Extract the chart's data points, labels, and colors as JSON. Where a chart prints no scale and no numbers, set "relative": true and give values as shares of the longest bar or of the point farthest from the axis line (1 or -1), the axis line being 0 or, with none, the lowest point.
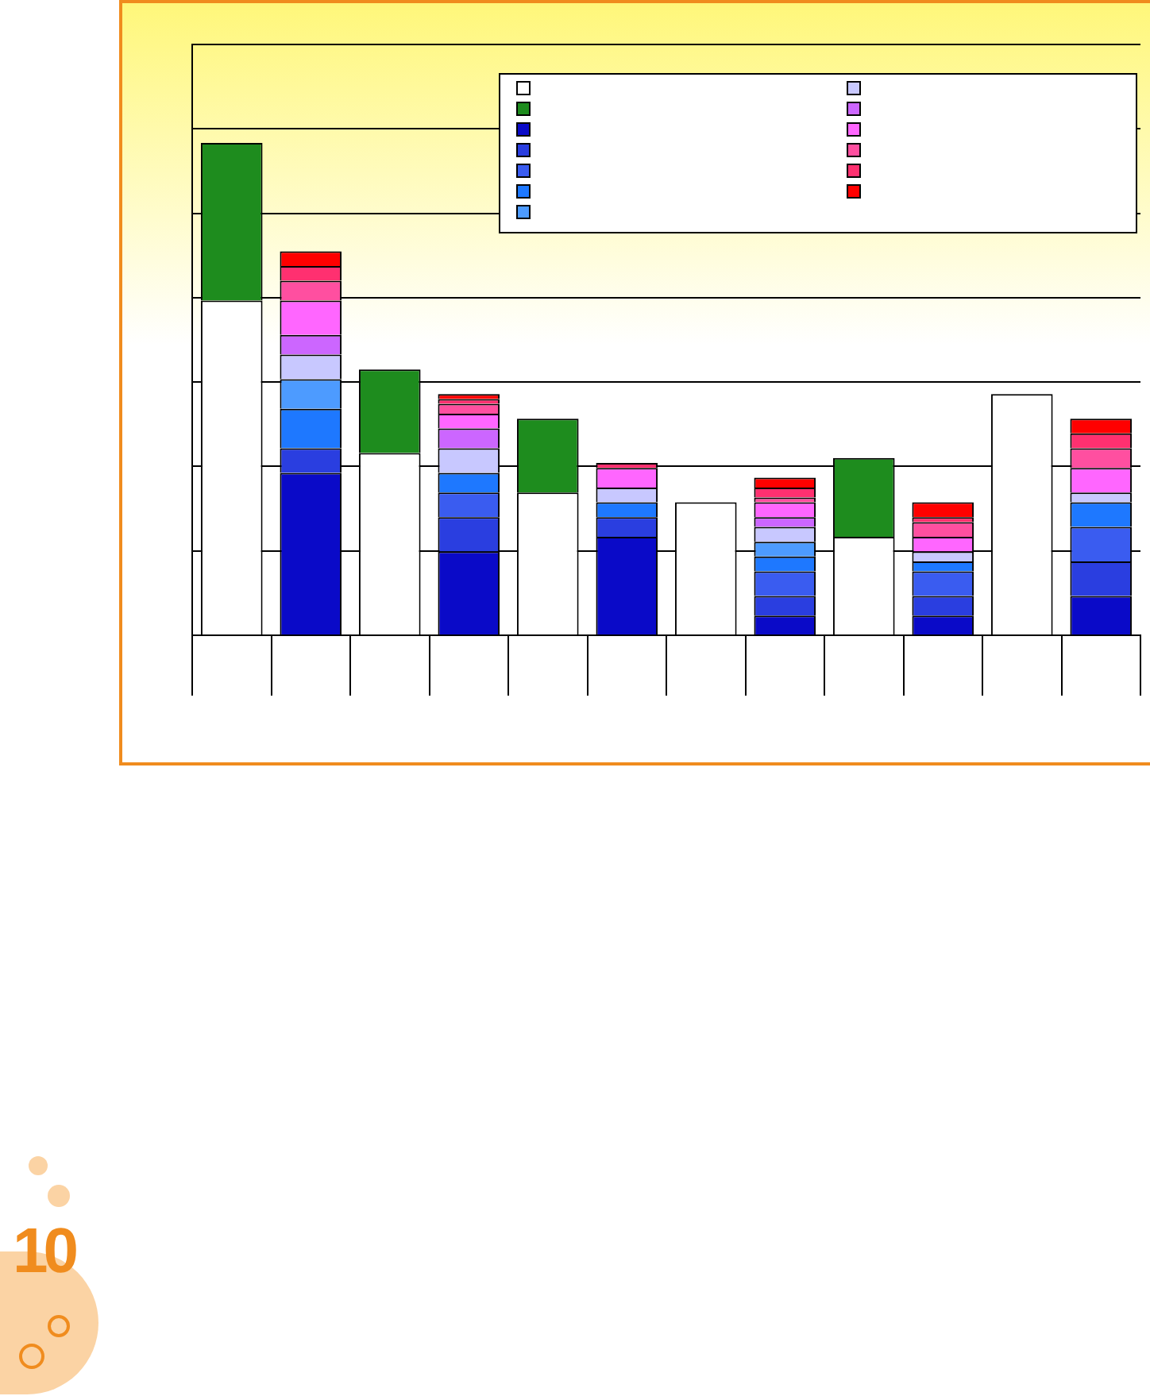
{
  "chart_data": {
    "type": "bar",
    "relative": true,
    "stacked": true,
    "grid": "y",
    "categories": [
      null,
      null,
      null,
      null,
      null,
      null,
      null,
      null,
      null,
      null,
      null,
      null
    ],
    "annotations": [
      "10"
    ],
    "series": [
      {
        "color": "#ffffff",
        "values": [
          0.68,
          null,
          0.37,
          null,
          0.29,
          null,
          0.27,
          null,
          0.2,
          null,
          0.49,
          null
        ]
      },
      {
        "color": "#1e8c1e",
        "values": [
          0.32,
          null,
          0.17,
          null,
          0.15,
          null,
          null,
          null,
          0.16,
          null,
          null,
          null
        ]
      },
      {
        "color": "#0a0ac8",
        "values": [
          null,
          0.33,
          null,
          0.17,
          null,
          0.2,
          null,
          0.04,
          null,
          0.04,
          null,
          0.08
        ]
      },
      {
        "color": "#2a3ee0",
        "values": [
          null,
          0.05,
          null,
          0.07,
          null,
          0.04,
          null,
          0.04,
          null,
          0.04,
          null,
          0.07
        ]
      },
      {
        "color": "#3a5cf0",
        "values": [
          null,
          null,
          null,
          0.05,
          null,
          null,
          null,
          0.05,
          null,
          0.05,
          null,
          0.07
        ]
      },
      {
        "color": "#1e78ff",
        "values": [
          null,
          0.08,
          null,
          0.04,
          null,
          0.03,
          null,
          0.03,
          null,
          0.02,
          null,
          0.05
        ]
      },
      {
        "color": "#4d9bff",
        "values": [
          null,
          0.06,
          null,
          null,
          null,
          null,
          null,
          0.03,
          null,
          null,
          null,
          null
        ]
      },
      {
        "color": "#c8c8ff",
        "values": [
          null,
          0.05,
          null,
          0.05,
          null,
          0.03,
          null,
          0.03,
          null,
          0.02,
          null,
          0.02
        ]
      },
      {
        "color": "#cc66ff",
        "values": [
          null,
          0.04,
          null,
          0.04,
          null,
          null,
          null,
          0.02,
          null,
          null,
          null,
          null
        ]
      },
      {
        "color": "#ff66ff",
        "values": [
          null,
          0.07,
          null,
          0.03,
          null,
          0.04,
          null,
          0.03,
          null,
          0.03,
          null,
          0.05
        ]
      },
      {
        "color": "#ff4fa0",
        "values": [
          null,
          0.04,
          null,
          0.02,
          null,
          null,
          null,
          0.01,
          null,
          0.03,
          null,
          0.04
        ]
      },
      {
        "color": "#ff3070",
        "values": [
          null,
          0.03,
          null,
          0.01,
          null,
          0.01,
          null,
          0.02,
          null,
          0.01,
          null,
          0.03
        ]
      },
      {
        "color": "#ff0000",
        "values": [
          null,
          0.03,
          null,
          0.01,
          null,
          null,
          null,
          0.02,
          null,
          0.03,
          null,
          0.03
        ]
      }
    ]
  }
}
